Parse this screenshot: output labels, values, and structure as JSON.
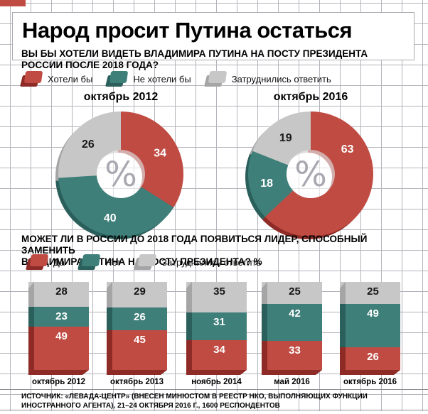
{
  "page": {
    "title": "Народ просит Путина остаться",
    "source_line": "ИСТОЧНИК: «ЛЕВАДА-ЦЕНТР» (ВНЕСЕН МИНЮСТОМ В РЕЕСТР НКО, ВЫПОЛНЯЮЩИХ ФУНКЦИИ ИНОСТРАННОГО АГЕНТА), 21–24 ОКТЯБРЯ 2016 Г., 1600 РЕСПОНДЕНТОВ"
  },
  "colors": {
    "red": "#c04b42",
    "teal": "#3f7f7a",
    "gray": "#c7c7c7",
    "red_dark": "#8e2b26",
    "teal_dark": "#2a5f5b",
    "gray_dark": "#a5a5a5",
    "center_symbol_color": "#a8a8b0"
  },
  "chart_data": [
    {
      "type": "pie",
      "subtype": "donut",
      "question": "ВЫ БЫ ХОТЕЛИ ВИДЕТЬ ВЛАДИМИРА ПУТИНА НА ПОСТУ ПРЕЗИДЕНТА\nРОССИИ ПОСЛЕ 2018 ГОДА?",
      "legend": [
        "Хотели бы",
        "Не хотели бы",
        "Затруднились ответить"
      ],
      "legend_position": "top",
      "center_symbol": "%",
      "unit": "%",
      "donuts": [
        {
          "title": "октябрь 2012",
          "labels": [
            "Хотели бы",
            "Не хотели бы",
            "Затруднились ответить"
          ],
          "values": [
            34,
            40,
            26
          ],
          "label_angles_deg": [
            61,
            194,
            313
          ]
        },
        {
          "title": "октябрь 2016",
          "labels": [
            "Хотели бы",
            "Не хотели бы",
            "Затруднились ответить"
          ],
          "values": [
            63,
            18,
            19
          ],
          "label_angles_deg": [
            55,
            259,
            326
          ]
        }
      ]
    },
    {
      "type": "bar",
      "subtype": "stacked-100",
      "question": "МОЖЕТ ЛИ В РОССИИ ДО 2018 ГОДА ПОЯВИТЬСЯ ЛИДЕР, СПОСОБНЫЙ ЗАМЕНИТЬ\nВЛАДИМИРА ПУТИНА НА ПОСТУ ПРЕЗИДЕНТА? %",
      "legend": [
        "Да",
        "Нет",
        "Затруднились ответить"
      ],
      "legend_position": "top",
      "categories": [
        "октябрь 2012",
        "октябрь 2013",
        "ноябрь 2014",
        "май 2016",
        "октябрь 2016"
      ],
      "series": [
        {
          "name": "Да",
          "values": [
            49,
            45,
            34,
            33,
            26
          ]
        },
        {
          "name": "Нет",
          "values": [
            23,
            26,
            31,
            42,
            49
          ]
        },
        {
          "name": "Затруднились ответить",
          "values": [
            28,
            29,
            35,
            25,
            25
          ]
        }
      ],
      "stack_order_top_to_bottom": [
        "Затруднились ответить",
        "Нет",
        "Да"
      ],
      "ylim": [
        0,
        100
      ],
      "grid": true
    }
  ]
}
